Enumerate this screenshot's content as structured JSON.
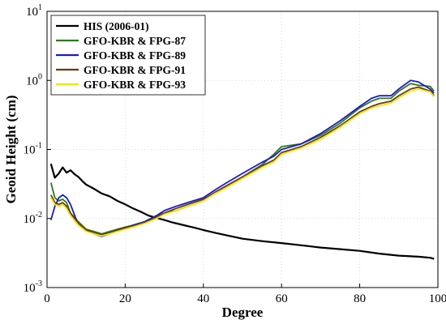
{
  "chart_data": {
    "type": "line",
    "xlabel": "Degree",
    "ylabel": "Geoid Height  (cm)",
    "xlim": [
      0,
      100
    ],
    "ylim": [
      0.001,
      10
    ],
    "yscale": "log",
    "grid": true,
    "legend_position": "top-left",
    "x_ticks": [
      {
        "value": 0,
        "label": "0"
      },
      {
        "value": 20,
        "label": "20"
      },
      {
        "value": 40,
        "label": "40"
      },
      {
        "value": 60,
        "label": "60"
      },
      {
        "value": 80,
        "label": "80"
      },
      {
        "value": 100,
        "label": "100"
      }
    ],
    "y_ticks": [
      {
        "value": 0.001,
        "base": "10",
        "exp": "-3"
      },
      {
        "value": 0.01,
        "base": "10",
        "exp": "-2"
      },
      {
        "value": 0.1,
        "base": "10",
        "exp": "-1"
      },
      {
        "value": 1,
        "base": "10",
        "exp": "0"
      },
      {
        "value": 10,
        "base": "10",
        "exp": "1"
      }
    ],
    "series": [
      {
        "name": "HIS (2006-01)",
        "color": "#000000",
        "x": [
          1,
          2,
          3,
          4,
          5,
          6,
          7,
          8,
          9,
          10,
          12,
          14,
          16,
          18,
          20,
          22,
          24,
          26,
          28,
          30,
          32,
          35,
          38,
          40,
          43,
          46,
          50,
          55,
          60,
          65,
          70,
          75,
          80,
          85,
          90,
          95,
          98,
          99
        ],
        "y": [
          0.062,
          0.039,
          0.045,
          0.055,
          0.046,
          0.05,
          0.044,
          0.04,
          0.035,
          0.031,
          0.027,
          0.023,
          0.021,
          0.018,
          0.016,
          0.014,
          0.0125,
          0.011,
          0.0102,
          0.0095,
          0.0088,
          0.008,
          0.0073,
          0.0068,
          0.0062,
          0.0057,
          0.0051,
          0.0047,
          0.0044,
          0.0041,
          0.0038,
          0.0036,
          0.0034,
          0.0031,
          0.0029,
          0.0028,
          0.0027,
          0.0026
        ]
      },
      {
        "name": "GFO-KBR & FPG-87",
        "color": "#2e7a18",
        "x": [
          1,
          2,
          3,
          4,
          5,
          6,
          8,
          10,
          12,
          14,
          16,
          18,
          20,
          22,
          25,
          28,
          30,
          33,
          36,
          40,
          43,
          46,
          50,
          55,
          58,
          60,
          65,
          70,
          75,
          80,
          83,
          85,
          88,
          90,
          93,
          95,
          98,
          99
        ],
        "y": [
          0.033,
          0.02,
          0.018,
          0.019,
          0.017,
          0.012,
          0.009,
          0.007,
          0.0065,
          0.006,
          0.0065,
          0.007,
          0.0075,
          0.008,
          0.009,
          0.011,
          0.012,
          0.013,
          0.015,
          0.018,
          0.024,
          0.03,
          0.04,
          0.06,
          0.085,
          0.11,
          0.12,
          0.16,
          0.24,
          0.4,
          0.5,
          0.55,
          0.55,
          0.7,
          0.9,
          0.85,
          0.82,
          0.7
        ]
      },
      {
        "name": "GFO-KBR & FPG-89",
        "color": "#1a1acc",
        "x": [
          1,
          2,
          3,
          4,
          5,
          6,
          8,
          10,
          12,
          14,
          16,
          18,
          20,
          22,
          25,
          28,
          30,
          33,
          36,
          40,
          43,
          46,
          50,
          55,
          58,
          60,
          65,
          70,
          75,
          80,
          83,
          85,
          88,
          90,
          93,
          95,
          98,
          99
        ],
        "y": [
          0.0095,
          0.015,
          0.02,
          0.022,
          0.02,
          0.016,
          0.008,
          0.0068,
          0.006,
          0.0055,
          0.006,
          0.0068,
          0.0072,
          0.008,
          0.009,
          0.011,
          0.013,
          0.015,
          0.017,
          0.02,
          0.026,
          0.033,
          0.045,
          0.065,
          0.08,
          0.1,
          0.12,
          0.17,
          0.26,
          0.42,
          0.55,
          0.6,
          0.6,
          0.75,
          1.0,
          0.95,
          0.75,
          0.65
        ]
      },
      {
        "name": "GFO-KBR & FPG-91",
        "color": "#6b3a12",
        "x": [
          1,
          2,
          3,
          4,
          5,
          6,
          8,
          10,
          12,
          14,
          16,
          18,
          20,
          22,
          25,
          28,
          30,
          33,
          36,
          40,
          43,
          46,
          50,
          55,
          58,
          60,
          65,
          70,
          75,
          80,
          83,
          85,
          88,
          90,
          93,
          95,
          98,
          99
        ],
        "y": [
          0.022,
          0.017,
          0.016,
          0.017,
          0.015,
          0.012,
          0.0085,
          0.0068,
          0.0062,
          0.0058,
          0.0062,
          0.0068,
          0.0074,
          0.0078,
          0.0088,
          0.0105,
          0.012,
          0.014,
          0.016,
          0.019,
          0.024,
          0.03,
          0.04,
          0.058,
          0.07,
          0.09,
          0.11,
          0.15,
          0.22,
          0.35,
          0.42,
          0.46,
          0.5,
          0.6,
          0.75,
          0.8,
          0.7,
          0.6
        ]
      },
      {
        "name": "GFO-KBR & FPG-93",
        "color": "#f0e60f",
        "x": [
          1,
          2,
          3,
          4,
          5,
          6,
          8,
          10,
          12,
          14,
          16,
          18,
          20,
          22,
          25,
          28,
          30,
          33,
          36,
          40,
          43,
          46,
          50,
          55,
          58,
          60,
          65,
          70,
          75,
          80,
          83,
          85,
          88,
          90,
          93,
          95,
          98,
          99
        ],
        "y": [
          0.02,
          0.016,
          0.015,
          0.016,
          0.014,
          0.011,
          0.008,
          0.0065,
          0.006,
          0.0056,
          0.006,
          0.0065,
          0.007,
          0.0075,
          0.0085,
          0.01,
          0.0115,
          0.013,
          0.015,
          0.018,
          0.023,
          0.028,
          0.038,
          0.055,
          0.066,
          0.085,
          0.105,
          0.14,
          0.21,
          0.33,
          0.4,
          0.43,
          0.47,
          0.56,
          0.7,
          0.75,
          0.68,
          0.58
        ]
      }
    ]
  }
}
